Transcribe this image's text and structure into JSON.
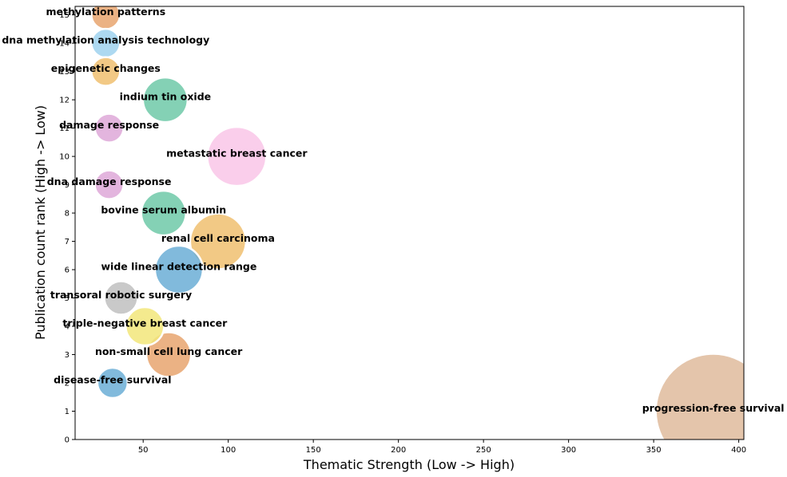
{
  "chart_data": {
    "type": "scatter",
    "xlabel": "Thematic Strength (Low -> High)",
    "ylabel": "Publication count rank (High -> Low)",
    "xlim": [
      10,
      403
    ],
    "ylim": [
      0,
      15.3
    ],
    "xticks": [
      50,
      100,
      150,
      200,
      250,
      300,
      350,
      400
    ],
    "yticks": [
      0,
      1,
      2,
      3,
      4,
      5,
      6,
      7,
      8,
      9,
      10,
      11,
      12,
      13,
      14,
      15
    ],
    "grid": false,
    "points": [
      {
        "label": "methylation patterns",
        "x": 28,
        "y": 15,
        "size": 18,
        "color": "#e8a56e"
      },
      {
        "label": "dna methylation analysis technology",
        "x": 28,
        "y": 14,
        "size": 18,
        "color": "#9fd2ef"
      },
      {
        "label": "epigenetic changes",
        "x": 28,
        "y": 13,
        "size": 18,
        "color": "#f0c070"
      },
      {
        "label": "indium tin oxide",
        "x": 63,
        "y": 12,
        "size": 28,
        "color": "#6fc9a8"
      },
      {
        "label": "damage response",
        "x": 30,
        "y": 11,
        "size": 18,
        "color": "#dea8d8"
      },
      {
        "label": "metastatic breast cancer",
        "x": 105,
        "y": 10,
        "size": 37,
        "color": "#f9c6e8"
      },
      {
        "label": "dna damage response",
        "x": 30,
        "y": 9,
        "size": 18,
        "color": "#dea8d8"
      },
      {
        "label": "bovine serum albumin",
        "x": 62,
        "y": 8,
        "size": 28,
        "color": "#6fc9a8"
      },
      {
        "label": "renal cell carcinoma",
        "x": 94,
        "y": 7,
        "size": 35,
        "color": "#f0c070"
      },
      {
        "label": "wide linear detection range",
        "x": 71,
        "y": 6,
        "size": 30,
        "color": "#6baed6"
      },
      {
        "label": "transoral robotic surgery",
        "x": 37,
        "y": 5,
        "size": 21,
        "color": "#c0c0c0"
      },
      {
        "label": "triple-negative breast cancer",
        "x": 51,
        "y": 4,
        "size": 24,
        "color": "#f2e67a"
      },
      {
        "label": "non-small cell lung cancer",
        "x": 65,
        "y": 3,
        "size": 28,
        "color": "#e8a56e"
      },
      {
        "label": "disease-free survival",
        "x": 32,
        "y": 2,
        "size": 19,
        "color": "#6baed6"
      },
      {
        "label": "progression-free survival",
        "x": 385,
        "y": 1,
        "size": 72,
        "color": "#dfbb9c"
      }
    ]
  }
}
